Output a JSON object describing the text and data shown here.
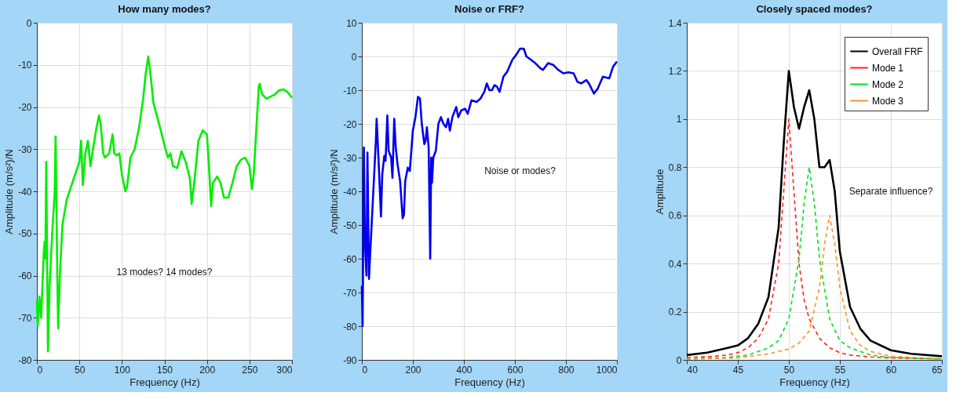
{
  "chart_data": [
    {
      "type": "line",
      "title": "How many modes?",
      "xlabel": "Frequency (Hz)",
      "ylabel": "Amplitude (m/s²)/N",
      "xlim": [
        0,
        300
      ],
      "ylim": [
        -80,
        0
      ],
      "xticks": [
        0,
        50,
        100,
        150,
        200,
        250,
        300
      ],
      "yticks": [
        -80,
        -70,
        -60,
        -50,
        -40,
        -30,
        -20,
        -10,
        0
      ],
      "grid": true,
      "legend": false,
      "annotations": [
        "13 modes? 14 modes?"
      ],
      "series": [
        {
          "color": "#00ee00",
          "line_style": "solid",
          "x": [
            0,
            1,
            3,
            5,
            8,
            9,
            10,
            11,
            13,
            15,
            18,
            21,
            22,
            24,
            25,
            27,
            30,
            35,
            40,
            45,
            50,
            52,
            54,
            57,
            60,
            63,
            66,
            70,
            73,
            75,
            78,
            80,
            85,
            89,
            91,
            94,
            97,
            100,
            104,
            106,
            110,
            115,
            120,
            125,
            128,
            131,
            134,
            137,
            145,
            150,
            154,
            157,
            160,
            165,
            170,
            175,
            180,
            182,
            185,
            190,
            195,
            200,
            202,
            205,
            207,
            212,
            216,
            220,
            225,
            230,
            235,
            240,
            245,
            250,
            253,
            255,
            259,
            261,
            262,
            265,
            270,
            275,
            280,
            285,
            290,
            295,
            300
          ],
          "values": [
            -66,
            -72,
            -65,
            -70,
            -55,
            -52,
            -56,
            -33,
            -78,
            -62,
            -50,
            -40,
            -27,
            -60,
            -72.5,
            -60,
            -48,
            -42,
            -39,
            -36,
            -33,
            -28,
            -38.5,
            -31,
            -28,
            -34,
            -30,
            -25,
            -22,
            -24,
            -31,
            -32,
            -31,
            -26.5,
            -31,
            -31.5,
            -31,
            -36,
            -40,
            -39,
            -32,
            -30,
            -25,
            -18,
            -12,
            -8,
            -13,
            -19,
            -25,
            -29,
            -32,
            -31,
            -34,
            -34.5,
            -30.5,
            -33,
            -37,
            -43,
            -38,
            -28,
            -25.5,
            -26.5,
            -33,
            -43.5,
            -38,
            -36.5,
            -38,
            -41.5,
            -41.5,
            -38,
            -34,
            -32.5,
            -32,
            -34,
            -39.5,
            -36,
            -22,
            -15,
            -14.5,
            -17,
            -18,
            -17.5,
            -17,
            -16,
            -15.8,
            -16.5,
            -17.8
          ]
        }
      ]
    },
    {
      "type": "line",
      "title": "Noise or FRF?",
      "xlabel": "Frequency (Hz)",
      "ylabel": "Amplitude (m/s²)/N",
      "xlim": [
        0,
        1000
      ],
      "ylim": [
        -90,
        10
      ],
      "xticks": [
        0,
        200,
        400,
        600,
        800,
        1000
      ],
      "yticks": [
        -90,
        -80,
        -70,
        -60,
        -50,
        -40,
        -30,
        -20,
        -10,
        0,
        10
      ],
      "grid": true,
      "legend": false,
      "annotations": [
        "Noise or modes?"
      ],
      "series": [
        {
          "color": "#0000ee",
          "line_style": "solid",
          "x": [
            0,
            3,
            8,
            12,
            18,
            22,
            28,
            35,
            45,
            55,
            58,
            62,
            68,
            75,
            80,
            88,
            93,
            100,
            105,
            110,
            115,
            120,
            127,
            133,
            140,
            150,
            160,
            165,
            170,
            180,
            188,
            195,
            200,
            210,
            220,
            228,
            235,
            245,
            250,
            255,
            262,
            268,
            272,
            275,
            280,
            285,
            290,
            300,
            310,
            320,
            330,
            338,
            345,
            355,
            365,
            370,
            378,
            390,
            405,
            415,
            430,
            450,
            465,
            480,
            490,
            500,
            510,
            520,
            530,
            540,
            555,
            570,
            590,
            605,
            620,
            635,
            645,
            660,
            680,
            700,
            710,
            730,
            750,
            770,
            790,
            810,
            830,
            845,
            860,
            880,
            890,
            910,
            925,
            945,
            970,
            985,
            1000
          ],
          "values": [
            -68,
            -80,
            -27,
            -55,
            -65,
            -28.5,
            -66,
            -55,
            -40,
            -25,
            -18.5,
            -25,
            -35,
            -47.5,
            -35,
            -29.5,
            -31,
            -17.5,
            -28,
            -29,
            -30,
            -36,
            -18.5,
            -27,
            -32,
            -37,
            -48,
            -47,
            -37,
            -33,
            -34,
            -27,
            -22,
            -18,
            -12,
            -12.5,
            -20,
            -26,
            -25,
            -21,
            -27,
            -60,
            -30,
            -37.5,
            -30,
            -29,
            -28,
            -20,
            -18,
            -20,
            -21,
            -18.5,
            -22,
            -18,
            -16,
            -15,
            -18,
            -16,
            -15.5,
            -17,
            -13,
            -13.5,
            -12.5,
            -10.5,
            -8,
            -10,
            -10,
            -8.5,
            -9,
            -10.5,
            -6,
            -4.5,
            -1,
            0.5,
            2.3,
            2.3,
            0,
            -0.8,
            -2,
            -3.5,
            -4,
            -2,
            -2.5,
            -4,
            -5,
            -4.7,
            -5,
            -7.5,
            -8,
            -7,
            -8,
            -11,
            -9.5,
            -6,
            -6.5,
            -3,
            -1.5
          ]
        }
      ]
    },
    {
      "type": "line",
      "title": "Closely spaced modes?",
      "xlabel": "Frequency (Hz)",
      "ylabel": "Amplitude",
      "xlim": [
        40,
        65
      ],
      "ylim": [
        0,
        1.4
      ],
      "xticks": [
        40,
        45,
        50,
        55,
        60,
        65
      ],
      "yticks": [
        0,
        0.2,
        0.4,
        0.6,
        0.8,
        1,
        1.2,
        1.4
      ],
      "grid": true,
      "legend": "top right",
      "annotations": [
        "Separate influence?"
      ],
      "series": [
        {
          "name": "Overall FRF",
          "color": "#000000",
          "line_style": "solid",
          "x": [
            40,
            42,
            44,
            45,
            46,
            47,
            48,
            49,
            49.5,
            50,
            50.5,
            51,
            51.5,
            52,
            52.5,
            53,
            53.5,
            54,
            54.5,
            55,
            56,
            57,
            58,
            60,
            62,
            65
          ],
          "values": [
            0.02,
            0.03,
            0.05,
            0.06,
            0.09,
            0.15,
            0.26,
            0.55,
            0.9,
            1.2,
            1.05,
            0.96,
            1.05,
            1.12,
            1.0,
            0.8,
            0.8,
            0.83,
            0.7,
            0.45,
            0.22,
            0.13,
            0.08,
            0.04,
            0.025,
            0.015
          ]
        },
        {
          "name": "Mode 1",
          "color": "#ff2020",
          "line_style": "dashed",
          "x": [
            40,
            42,
            44,
            45,
            46,
            47,
            48,
            49,
            49.5,
            50,
            50.5,
            51,
            51.5,
            52,
            53,
            54,
            55,
            56,
            58,
            60,
            65
          ],
          "values": [
            0.01,
            0.013,
            0.02,
            0.03,
            0.05,
            0.09,
            0.17,
            0.4,
            0.7,
            1.0,
            0.7,
            0.4,
            0.25,
            0.17,
            0.09,
            0.05,
            0.03,
            0.02,
            0.012,
            0.008,
            0.004
          ]
        },
        {
          "name": "Mode 2",
          "color": "#00e020",
          "line_style": "dashed",
          "x": [
            40,
            44,
            46,
            48,
            49,
            50,
            51,
            51.5,
            52,
            52.5,
            53,
            54,
            55,
            56,
            58,
            60,
            65
          ],
          "values": [
            0.004,
            0.01,
            0.02,
            0.05,
            0.08,
            0.17,
            0.42,
            0.65,
            0.8,
            0.65,
            0.42,
            0.17,
            0.08,
            0.05,
            0.02,
            0.01,
            0.004
          ]
        },
        {
          "name": "Mode 3",
          "color": "#ff9020",
          "line_style": "dashed",
          "x": [
            40,
            45,
            48,
            50,
            51,
            52,
            53,
            53.5,
            54,
            54.5,
            55,
            56,
            57,
            58,
            60,
            65
          ],
          "values": [
            0.003,
            0.008,
            0.025,
            0.045,
            0.07,
            0.12,
            0.3,
            0.48,
            0.6,
            0.48,
            0.3,
            0.12,
            0.06,
            0.035,
            0.015,
            0.004
          ]
        }
      ]
    }
  ]
}
